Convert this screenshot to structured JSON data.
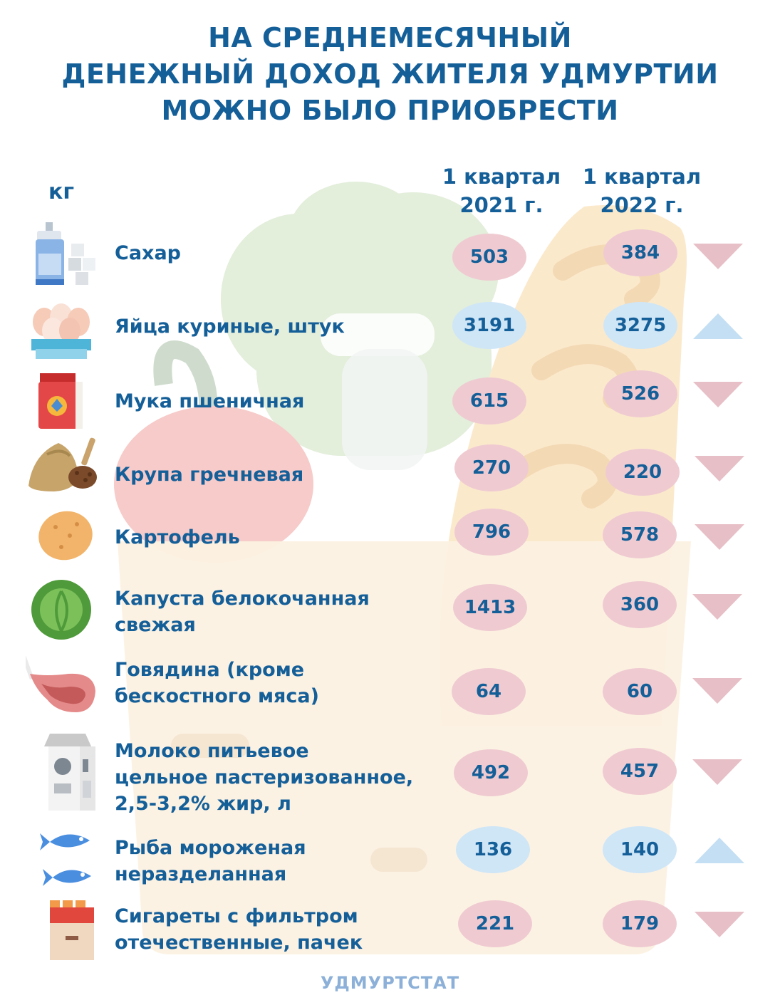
{
  "title_lines": [
    "НА СРЕДНЕМЕСЯЧНЫЙ",
    "ДЕНЕЖНЫЙ ДОХОД ЖИТЕЛЯ УДМУРТИИ",
    "МОЖНО БЫЛО ПРИОБРЕСТИ"
  ],
  "unit": "кг",
  "columns": [
    {
      "line1": "1 квартал",
      "line2": "2021 г."
    },
    {
      "line1": "1 квартал",
      "line2": "2022 г."
    }
  ],
  "source": "УДМУРТСТАТ",
  "colors": {
    "text": "#155f99",
    "decrease": "#efcbd1",
    "increase": "#cfe6f7",
    "decrease_arrow": "#e7bfc6",
    "increase_arrow": "#c4dff3"
  },
  "chart_data": {
    "type": "table",
    "categories": [
      "Сахар",
      "Яйца куриные,  штук",
      "Мука пшеничная",
      "Крупа гречневая",
      "Картофель",
      "Капуста белокочанная свежая",
      "Говядина (кроме бескостного мяса)",
      "Молоко питьевое цельное пастеризованное, 2,5-3,2% жир, л",
      "Рыба мороженая неразделанная",
      "Сигареты с фильтром отечественные, пачек"
    ],
    "series": [
      {
        "name": "1 квартал 2021 г.",
        "values": [
          503,
          3191,
          615,
          270,
          796,
          1413,
          64,
          492,
          136,
          221
        ]
      },
      {
        "name": "1 квартал 2022 г.",
        "values": [
          384,
          3275,
          526,
          220,
          578,
          360,
          60,
          457,
          140,
          179
        ]
      }
    ],
    "trend": [
      "down",
      "up",
      "down",
      "down",
      "down",
      "down",
      "down",
      "down",
      "up",
      "down"
    ]
  },
  "rows": [
    {
      "icon": "sugar-icon",
      "label_lines": [
        "Сахар"
      ],
      "v2021": "503",
      "v2022": "384",
      "trend": "down"
    },
    {
      "icon": "eggs-icon",
      "label_lines": [
        "Яйца куриные,  штук"
      ],
      "v2021": "3191",
      "v2022": "3275",
      "trend": "up"
    },
    {
      "icon": "flour-icon",
      "label_lines": [
        "Мука пшеничная"
      ],
      "v2021": "615",
      "v2022": "526",
      "trend": "down"
    },
    {
      "icon": "buckwheat-icon",
      "label_lines": [
        "Крупа гречневая"
      ],
      "v2021": "270",
      "v2022": "220",
      "trend": "down"
    },
    {
      "icon": "potato-icon",
      "label_lines": [
        "Картофель"
      ],
      "v2021": "796",
      "v2022": "578",
      "trend": "down"
    },
    {
      "icon": "cabbage-icon",
      "label_lines": [
        "Капуста белокочанная",
        "свежая"
      ],
      "v2021": "1413",
      "v2022": "360",
      "trend": "down"
    },
    {
      "icon": "beef-icon",
      "label_lines": [
        "Говядина (кроме",
        "бескостного мяса)"
      ],
      "v2021": "64",
      "v2022": "60",
      "trend": "down"
    },
    {
      "icon": "milk-icon",
      "label_lines": [
        "Молоко питьевое",
        "цельное пастеризованное,",
        "2,5-3,2% жир, л"
      ],
      "v2021": "492",
      "v2022": "457",
      "trend": "down"
    },
    {
      "icon": "fish-icon",
      "label_lines": [
        "Рыба мороженая",
        "неразделанная"
      ],
      "v2021": "136",
      "v2022": "140",
      "trend": "up"
    },
    {
      "icon": "cigarettes-icon",
      "label_lines": [
        "Сигареты с фильтром",
        "отечественные, пачек"
      ],
      "v2021": "221",
      "v2022": "179",
      "trend": "down"
    }
  ]
}
